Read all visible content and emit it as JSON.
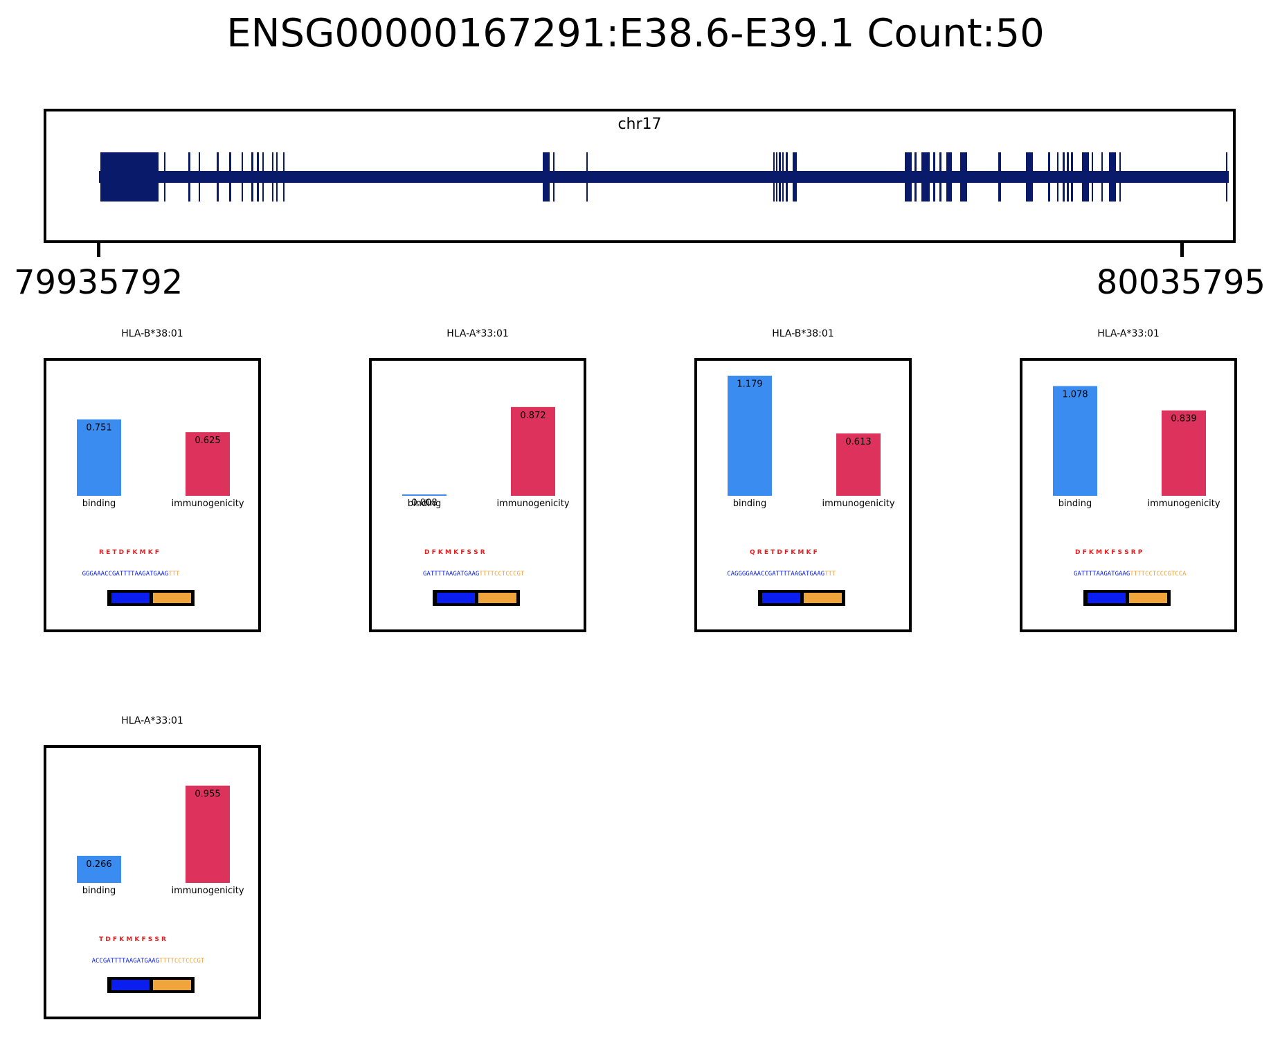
{
  "title": "ENSG00000167291:E38.6-E39.1 Count:50",
  "track": {
    "chrom": "chr17",
    "start_label": "79935792",
    "end_label": "80035795",
    "start": 79935792,
    "end": 80035795,
    "colors": {
      "exon": "#0a1a6b",
      "backbone": "#0a1a6b"
    }
  },
  "chart_data": [
    {
      "type": "bar",
      "title": "HLA-B*38:01",
      "categories": [
        "binding",
        "immunogenicity"
      ],
      "values": [
        0.751,
        0.625
      ],
      "value_labels": [
        "0.751",
        "0.625"
      ],
      "peptide": "R E T D F K M K F",
      "dna": {
        "first": "GGGAAACCGATTTTAAGATGAAG",
        "second": "TTT"
      },
      "colors": [
        "#3a8cf0",
        "#dc325c"
      ]
    },
    {
      "type": "bar",
      "title": "HLA-A*33:01",
      "categories": [
        "binding",
        "immunogenicity"
      ],
      "values": [
        0.008,
        0.872
      ],
      "value_labels": [
        "0.008",
        "0.872"
      ],
      "peptide": "D F K M K F S S R",
      "dna": {
        "first": "GATTTTAAGATGAAG",
        "second": "TTTTCCTCCCGT"
      },
      "colors": [
        "#3a8cf0",
        "#dc325c"
      ]
    },
    {
      "type": "bar",
      "title": "HLA-B*38:01",
      "categories": [
        "binding",
        "immunogenicity"
      ],
      "values": [
        1.179,
        0.613
      ],
      "value_labels": [
        "1.179",
        "0.613"
      ],
      "peptide": "Q R E T D F K M K F",
      "dna": {
        "first": "CAGGGGAAACCGATTTTAAGATGAAG",
        "second": "TTT"
      },
      "colors": [
        "#3a8cf0",
        "#dc325c"
      ]
    },
    {
      "type": "bar",
      "title": "HLA-A*33:01",
      "categories": [
        "binding",
        "immunogenicity"
      ],
      "values": [
        1.078,
        0.839
      ],
      "value_labels": [
        "1.078",
        "0.839"
      ],
      "peptide": "D F K M K F S S R P",
      "dna": {
        "first": "GATTTTAAGATGAAG",
        "second": "TTTTCCTCCCGTCCA"
      },
      "colors": [
        "#3a8cf0",
        "#dc325c"
      ]
    },
    {
      "type": "bar",
      "title": "HLA-A*33:01",
      "categories": [
        "binding",
        "immunogenicity"
      ],
      "values": [
        0.266,
        0.955
      ],
      "value_labels": [
        "0.266",
        "0.955"
      ],
      "peptide": "T D F K M K F S S R",
      "dna": {
        "first": "ACCGATTTTAAGATGAAG",
        "second": "TTTTCCTCCCGT"
      },
      "colors": [
        "#3a8cf0",
        "#dc325c"
      ]
    }
  ],
  "legend_colors": {
    "first": "#0a1ef0",
    "second": "#f0a43c"
  },
  "peptide_color": "#e62020"
}
